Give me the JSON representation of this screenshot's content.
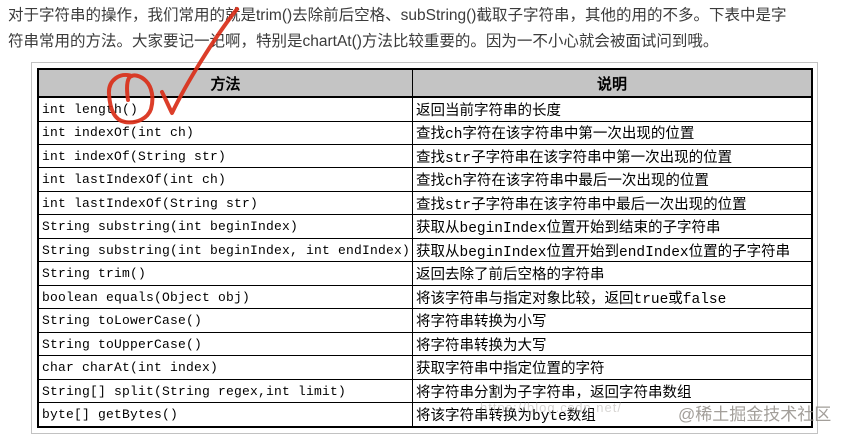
{
  "intro": {
    "lines": [
      "对于字符串的操作，我们常用的就是trim()去除前后空格、subString()截取子字符串，其他的用的不多。下表中是字",
      "符串常用的方法。大家要记一记啊，特别是chartAt()方法比较重要的。因为一不小心就会被面试问到哦。"
    ]
  },
  "table": {
    "columns": [
      "方法",
      "说明"
    ],
    "header_bg": "#c4c4c4",
    "border_color": "#000000",
    "rows": [
      {
        "method": "int length()",
        "description": "返回当前字符串的长度"
      },
      {
        "method": "int indexOf(int ch)",
        "description": "查找ch字符在该字符串中第一次出现的位置"
      },
      {
        "method": "int indexOf(String str)",
        "description": "查找str子字符串在该字符串中第一次出现的位置"
      },
      {
        "method": "int lastIndexOf(int ch)",
        "description": "查找ch字符在该字符串中最后一次出现的位置"
      },
      {
        "method": "int lastIndexOf(String str)",
        "description": "查找str子字符串在该字符串中最后一次出现的位置"
      },
      {
        "method": "String substring(int beginIndex)",
        "description": "获取从beginIndex位置开始到结束的子字符串"
      },
      {
        "method": "String substring(int beginIndex, int endIndex)",
        "description": "获取从beginIndex位置开始到endIndex位置的子字符串"
      },
      {
        "method": "String trim()",
        "description": "返回去除了前后空格的字符串"
      },
      {
        "method": "boolean equals(Object obj)",
        "description": "将该字符串与指定对象比较，返回true或false"
      },
      {
        "method": "String toLowerCase()",
        "description": "将字符串转换为小写"
      },
      {
        "method": "String toUpperCase()",
        "description": "将字符串转换为大写"
      },
      {
        "method": "char charAt(int index)",
        "description": "获取字符串中指定位置的字符"
      },
      {
        "method": "String[] split(String regex,int limit)",
        "description": "将字符串分割为子字符串，返回字符串数组"
      },
      {
        "method": "byte[] getBytes()",
        "description": "将该字符串转换为byte数组"
      }
    ]
  },
  "annotation": {
    "color": "#d92e18",
    "shapes": [
      "red-circle-around-length-method",
      "red-checkmark-stroke"
    ]
  },
  "watermarks": {
    "url_watermark": "https://blog.csdn.net/",
    "community_watermark": "@稀土掘金技术社区"
  }
}
